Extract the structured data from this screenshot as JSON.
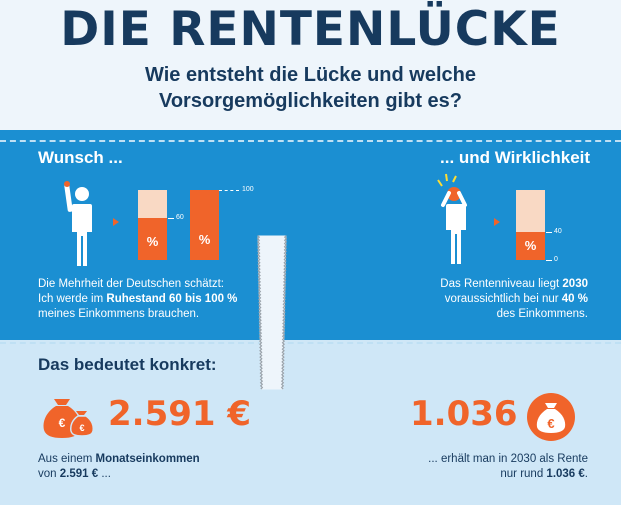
{
  "header": {
    "title": "DIE RENTENLÜCKE",
    "subtitle_line1": "Wie entsteht die Lücke und welche",
    "subtitle_line2": "Vorsorgemöglichkeiten gibt es?"
  },
  "left": {
    "heading": "Wunsch ...",
    "bar1_label": "%",
    "bar2_label": "%",
    "bar1_tick": "60",
    "bar2_tick": "100",
    "text_line1": "Die Mehrheit der Deutschen schätzt:",
    "text_line2_pre": "Ich werde im ",
    "text_line2_bold": "Ruhestand 60 bis 100 %",
    "text_line3": "meines Einkommens brauchen.",
    "concrete_heading": "Das bedeutet konkret:",
    "amount": "2.591 €",
    "bottom_line1_pre": "Aus einem ",
    "bottom_line1_bold": "Monatseinkommen",
    "bottom_line2_pre": "von ",
    "bottom_line2_bold": "2.591 €",
    "bottom_line2_post": " ..."
  },
  "right": {
    "heading": "... und Wirklichkeit",
    "bar_label": "%",
    "tick_40": "40",
    "tick_0": "0",
    "text_line1_pre": "Das Rentenniveau liegt ",
    "text_line1_bold": "2030",
    "text_line2_pre": "voraussichtlich bei nur ",
    "text_line2_bold": "40 %",
    "text_line3": "des Einkommens.",
    "amount": "1.036 €",
    "bottom_line1": "... erhält man in 2030 als Rente",
    "bottom_line2_pre": "nur rund ",
    "bottom_line2_bold": "1.036 €",
    "bottom_line2_post": "."
  },
  "bars": {
    "wish_min_pct": 60,
    "wish_max_pct": 100,
    "reality_pct": 40
  },
  "colors": {
    "navy": "#173a5e",
    "blue_band": "#1b8fd2",
    "light_band": "#cfe7f7",
    "orange": "#f0642a",
    "peach": "#f9d9c4"
  },
  "icons": {
    "wish_person": "person-raising-hand-icon",
    "reality_person": "person-head-in-hands-icon",
    "money_bag": "euro-money-bag-icon"
  }
}
